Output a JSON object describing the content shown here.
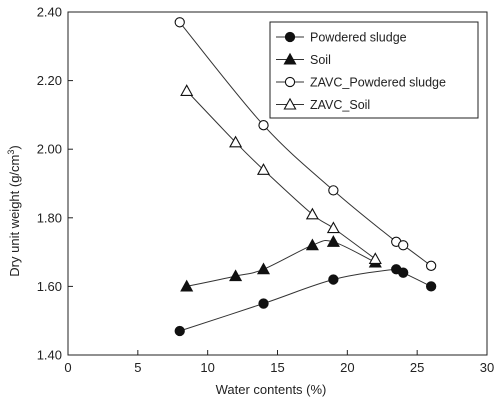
{
  "chart_data": {
    "type": "line",
    "xlabel": "Water contents (%)",
    "ylabel_main": "Dry unit weight (g/cm",
    "ylabel_sup": "3",
    "ylabel_close": ")",
    "xlim": [
      0,
      30
    ],
    "ylim": [
      1.4,
      2.4
    ],
    "x_ticks": [
      0,
      5,
      10,
      15,
      20,
      25,
      30
    ],
    "x_tick_labels": [
      "0",
      "5",
      "10",
      "15",
      "20",
      "25",
      "30"
    ],
    "y_ticks": [
      1.4,
      1.6,
      1.8,
      2.0,
      2.2,
      2.4
    ],
    "y_tick_labels": [
      "1.40",
      "1.60",
      "1.80",
      "2.00",
      "2.20",
      "2.40"
    ],
    "grid": false,
    "legend_position": "top-right",
    "series": [
      {
        "name": "Powdered sludge",
        "marker": "filled-circle",
        "x": [
          8.0,
          14.0,
          19.0,
          23.5,
          24.0,
          26.0
        ],
        "y": [
          1.47,
          1.55,
          1.62,
          1.65,
          1.64,
          1.6
        ]
      },
      {
        "name": "Soil",
        "marker": "filled-triangle",
        "x": [
          8.5,
          12.0,
          14.0,
          17.5,
          19.0,
          22.0
        ],
        "y": [
          1.6,
          1.63,
          1.65,
          1.72,
          1.73,
          1.67
        ]
      },
      {
        "name": "ZAVC_Powdered sludge",
        "marker": "open-circle",
        "x": [
          8.0,
          14.0,
          19.0,
          23.5,
          24.0,
          26.0
        ],
        "y": [
          2.37,
          2.07,
          1.88,
          1.73,
          1.72,
          1.66
        ]
      },
      {
        "name": "ZAVC_Soil",
        "marker": "open-triangle",
        "x": [
          8.5,
          12.0,
          14.0,
          17.5,
          19.0,
          22.0
        ],
        "y": [
          2.17,
          2.02,
          1.94,
          1.81,
          1.77,
          1.68
        ]
      }
    ]
  }
}
